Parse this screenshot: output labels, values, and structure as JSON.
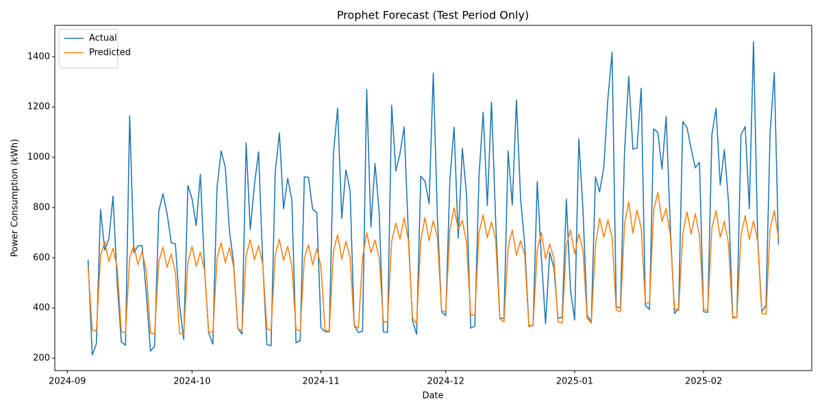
{
  "chart_data": {
    "type": "line",
    "title": "Prophet Forecast (Test Period Only)",
    "x_label": "Date",
    "y_label": "Power Consumption (kWh)",
    "x": [
      "2024-09-06",
      "2024-09-07",
      "2024-09-08",
      "2024-09-09",
      "2024-09-10",
      "2024-09-11",
      "2024-09-12",
      "2024-09-13",
      "2024-09-14",
      "2024-09-15",
      "2024-09-16",
      "2024-09-17",
      "2024-09-18",
      "2024-09-19",
      "2024-09-20",
      "2024-09-21",
      "2024-09-22",
      "2024-09-23",
      "2024-09-24",
      "2024-09-25",
      "2024-09-26",
      "2024-09-27",
      "2024-09-28",
      "2024-09-29",
      "2024-09-30",
      "2024-10-01",
      "2024-10-02",
      "2024-10-03",
      "2024-10-04",
      "2024-10-05",
      "2024-10-06",
      "2024-10-07",
      "2024-10-08",
      "2024-10-09",
      "2024-10-10",
      "2024-10-11",
      "2024-10-12",
      "2024-10-13",
      "2024-10-14",
      "2024-10-15",
      "2024-10-16",
      "2024-10-17",
      "2024-10-18",
      "2024-10-19",
      "2024-10-20",
      "2024-10-21",
      "2024-10-22",
      "2024-10-23",
      "2024-10-24",
      "2024-10-25",
      "2024-10-26",
      "2024-10-27",
      "2024-10-28",
      "2024-10-29",
      "2024-10-30",
      "2024-10-31",
      "2024-11-01",
      "2024-11-02",
      "2024-11-03",
      "2024-11-04",
      "2024-11-05",
      "2024-11-06",
      "2024-11-07",
      "2024-11-08",
      "2024-11-09",
      "2024-11-10",
      "2024-11-11",
      "2024-11-12",
      "2024-11-13",
      "2024-11-14",
      "2024-11-15",
      "2024-11-16",
      "2024-11-17",
      "2024-11-18",
      "2024-11-19",
      "2024-11-20",
      "2024-11-21",
      "2024-11-22",
      "2024-11-23",
      "2024-11-24",
      "2024-11-25",
      "2024-11-26",
      "2024-11-27",
      "2024-11-28",
      "2024-11-29",
      "2024-11-30",
      "2024-12-01",
      "2024-12-02",
      "2024-12-03",
      "2024-12-04",
      "2024-12-05",
      "2024-12-06",
      "2024-12-07",
      "2024-12-08",
      "2024-12-09",
      "2024-12-10",
      "2024-12-11",
      "2024-12-12",
      "2024-12-13",
      "2024-12-14",
      "2024-12-15",
      "2024-12-16",
      "2024-12-17",
      "2024-12-18",
      "2024-12-19",
      "2024-12-20",
      "2024-12-21",
      "2024-12-22",
      "2024-12-23",
      "2024-12-24",
      "2024-12-25",
      "2024-12-26",
      "2024-12-27",
      "2024-12-28",
      "2024-12-29",
      "2024-12-30",
      "2024-12-31",
      "2025-01-01",
      "2025-01-02",
      "2025-01-03",
      "2025-01-04",
      "2025-01-05",
      "2025-01-06",
      "2025-01-07",
      "2025-01-08",
      "2025-01-09",
      "2025-01-10",
      "2025-01-11",
      "2025-01-12",
      "2025-01-13",
      "2025-01-14",
      "2025-01-15",
      "2025-01-16",
      "2025-01-17",
      "2025-01-18",
      "2025-01-19",
      "2025-01-20",
      "2025-01-21",
      "2025-01-22",
      "2025-01-23",
      "2025-01-24",
      "2025-01-25",
      "2025-01-26",
      "2025-01-27",
      "2025-01-28",
      "2025-01-29",
      "2025-01-30",
      "2025-01-31",
      "2025-02-01",
      "2025-02-02",
      "2025-02-03",
      "2025-02-04",
      "2025-02-05",
      "2025-02-06",
      "2025-02-07",
      "2025-02-08",
      "2025-02-09",
      "2025-02-10",
      "2025-02-11",
      "2025-02-12",
      "2025-02-13",
      "2025-02-14",
      "2025-02-15",
      "2025-02-16",
      "2025-02-17",
      "2025-02-18",
      "2025-02-19"
    ],
    "series": [
      {
        "name": "Actual",
        "color": "#1f77b4",
        "values": [
          592,
          213,
          258,
          793,
          630,
          675,
          845,
          500,
          265,
          252,
          1165,
          620,
          648,
          648,
          460,
          228,
          248,
          785,
          855,
          775,
          660,
          655,
          410,
          275,
          888,
          835,
          728,
          932,
          560,
          300,
          256,
          880,
          1025,
          960,
          705,
          580,
          320,
          296,
          1057,
          712,
          890,
          1022,
          580,
          255,
          250,
          940,
          1097,
          795,
          917,
          830,
          262,
          270,
          922,
          920,
          793,
          780,
          322,
          306,
          305,
          1015,
          1195,
          757,
          950,
          868,
          330,
          302,
          308,
          1270,
          722,
          975,
          780,
          305,
          303,
          1207,
          945,
          1015,
          1120,
          700,
          350,
          295,
          925,
          905,
          815,
          1335,
          760,
          385,
          370,
          910,
          1120,
          678,
          1035,
          850,
          320,
          328,
          925,
          1180,
          808,
          1220,
          750,
          358,
          360,
          1025,
          810,
          1228,
          835,
          650,
          330,
          330,
          903,
          600,
          338,
          622,
          560,
          360,
          362,
          833,
          470,
          352,
          1073,
          790,
          370,
          345,
          922,
          862,
          960,
          1235,
          1418,
          405,
          400,
          1025,
          1322,
          1032,
          1037,
          1275,
          410,
          395,
          1113,
          1098,
          953,
          1162,
          720,
          378,
          400,
          1142,
          1118,
          1035,
          958,
          980,
          385,
          383,
          1090,
          1195,
          890,
          1030,
          820,
          365,
          362,
          1090,
          1122,
          795,
          1460,
          680,
          385,
          410,
          1100,
          1337,
          653
        ]
      },
      {
        "name": "Predicted",
        "color": "#ff7f0e",
        "values": [
          565,
          312,
          308,
          608,
          665,
          585,
          638,
          560,
          305,
          302,
          600,
          650,
          572,
          625,
          548,
          300,
          297,
          585,
          642,
          562,
          615,
          540,
          298,
          295,
          582,
          645,
          567,
          622,
          550,
          305,
          302,
          597,
          660,
          580,
          640,
          565,
          318,
          310,
          610,
          672,
          592,
          648,
          575,
          318,
          312,
          612,
          673,
          590,
          645,
          568,
          315,
          308,
          598,
          652,
          572,
          636,
          565,
          310,
          308,
          625,
          692,
          595,
          665,
          600,
          330,
          320,
          600,
          700,
          620,
          670,
          600,
          345,
          345,
          665,
          738,
          675,
          760,
          672,
          360,
          338,
          668,
          760,
          668,
          748,
          680,
          390,
          385,
          712,
          798,
          715,
          748,
          660,
          372,
          372,
          700,
          770,
          680,
          742,
          672,
          358,
          345,
          640,
          710,
          610,
          668,
          610,
          325,
          332,
          630,
          700,
          595,
          655,
          598,
          345,
          340,
          650,
          710,
          615,
          695,
          630,
          360,
          340,
          650,
          757,
          682,
          750,
          680,
          392,
          385,
          735,
          822,
          698,
          790,
          718,
          420,
          420,
          790,
          860,
          745,
          795,
          690,
          398,
          390,
          698,
          783,
          695,
          775,
          690,
          395,
          392,
          720,
          787,
          682,
          745,
          655,
          360,
          362,
          690,
          767,
          672,
          747,
          668,
          380,
          375,
          715,
          788,
          680
        ]
      }
    ],
    "xlim": [
      "2024-08-29",
      "2025-02-27"
    ],
    "xticks": [
      {
        "value": "2024-09-01",
        "label": "2024-09"
      },
      {
        "value": "2024-10-01",
        "label": "2024-10"
      },
      {
        "value": "2024-11-01",
        "label": "2024-11"
      },
      {
        "value": "2024-12-01",
        "label": "2024-12"
      },
      {
        "value": "2025-01-01",
        "label": "2025-01"
      },
      {
        "value": "2025-02-01",
        "label": "2025-02"
      }
    ],
    "ylim": [
      151,
      1525
    ],
    "yticks": [
      200,
      400,
      600,
      800,
      1000,
      1200,
      1400
    ],
    "grid": false,
    "legend": "upper left"
  }
}
